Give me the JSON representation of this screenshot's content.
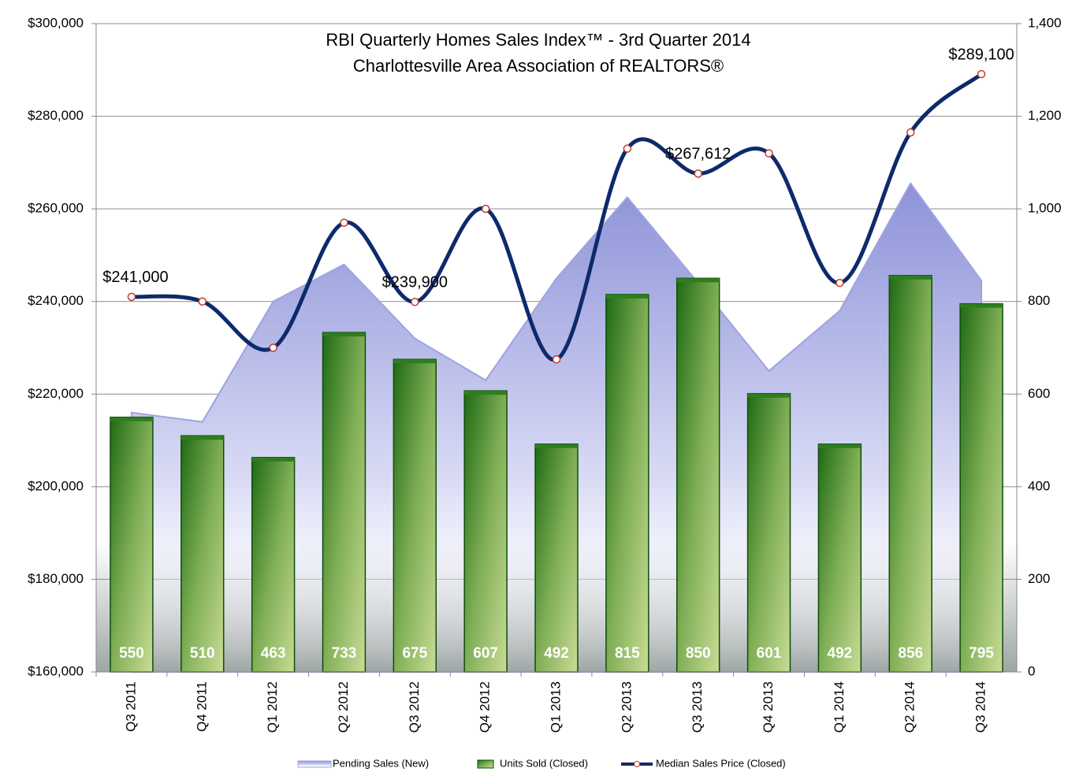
{
  "chart_data": {
    "type": "combo",
    "title": "RBI Quarterly Homes Sales Index™ -  3rd Quarter 2014",
    "subtitle": "Charlottesville Area Association of REALTORS®",
    "categories": [
      "Q3 2011",
      "Q4 2011",
      "Q1 2012",
      "Q2 2012",
      "Q3 2012",
      "Q4 2012",
      "Q1 2013",
      "Q2 2013",
      "Q3 2013",
      "Q4 2013",
      "Q1 2014",
      "Q2 2014",
      "Q3 2014"
    ],
    "series": [
      {
        "name": "Pending Sales (New)",
        "type": "area",
        "axis": "y2",
        "color": "#9fa3e0",
        "values": [
          560,
          540,
          800,
          880,
          720,
          630,
          850,
          1025,
          840,
          650,
          780,
          1055,
          845
        ]
      },
      {
        "name": "Units Sold (Closed)",
        "type": "bar",
        "axis": "y2",
        "color": "#2e7d1e",
        "values": [
          550,
          510,
          463,
          733,
          675,
          607,
          492,
          815,
          850,
          601,
          492,
          856,
          795
        ]
      },
      {
        "name": "Median Sales Price (Closed)",
        "type": "line",
        "color": "#0d2a6b",
        "values": [
          241000,
          240000,
          230000,
          257000,
          239900,
          260000,
          227500,
          273000,
          267612,
          272000,
          244000,
          276500,
          289100
        ],
        "value_labels": [
          "$241,000",
          null,
          null,
          null,
          "$239,900",
          null,
          null,
          null,
          "$267,612",
          null,
          null,
          null,
          "$289,100"
        ]
      }
    ],
    "ylim": [
      160000,
      300000
    ],
    "yticks": [
      {
        "value": 160000,
        "label": "$160,000"
      },
      {
        "value": 180000,
        "label": "$180,000"
      },
      {
        "value": 200000,
        "label": "$200,000"
      },
      {
        "value": 220000,
        "label": "$220,000"
      },
      {
        "value": 240000,
        "label": "$240,000"
      },
      {
        "value": 260000,
        "label": "$260,000"
      },
      {
        "value": 280000,
        "label": "$280,000"
      },
      {
        "value": 300000,
        "label": "$300,000"
      }
    ],
    "y2lim": [
      0,
      1400
    ],
    "y2ticks": [
      0,
      200,
      400,
      600,
      800,
      {
        "value": 1000,
        "label": "1,000"
      },
      {
        "value": 1200,
        "label": "1,200"
      },
      {
        "value": 1400,
        "label": "1,400"
      }
    ],
    "grid": true
  }
}
